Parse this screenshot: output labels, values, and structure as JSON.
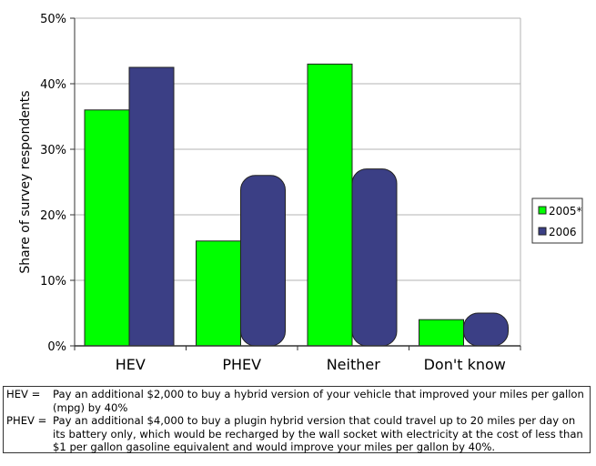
{
  "chart_data": {
    "type": "bar",
    "categories": [
      "HEV",
      "PHEV",
      "Neither",
      "Don't know"
    ],
    "series": [
      {
        "name": "2005*",
        "values": [
          36,
          16,
          43,
          4
        ],
        "color": "#00ff00"
      },
      {
        "name": "2006",
        "values": [
          42.5,
          26,
          27,
          5
        ],
        "color": "#3b3f85"
      }
    ],
    "ylabel": "Share of survey respondents",
    "xlabel": "",
    "ylim": [
      0,
      50
    ],
    "yticks": [
      "0%",
      "10%",
      "20%",
      "30%",
      "40%",
      "50%"
    ],
    "grid": true,
    "legend": "right"
  },
  "notes": [
    {
      "label": "HEV =",
      "text": "Pay an additional $2,000 to buy a hybrid version of your vehicle that improved your miles per gallon (mpg) by 40%"
    },
    {
      "label": "PHEV =",
      "text": "Pay an additional $4,000 to buy a plugin hybrid version that could travel up to 20 miles per day on its battery only, which would be recharged by the wall socket with electricity at the cost of less than $1 per gallon gasoline equivalent and would improve your miles per gallon by 40%."
    }
  ]
}
